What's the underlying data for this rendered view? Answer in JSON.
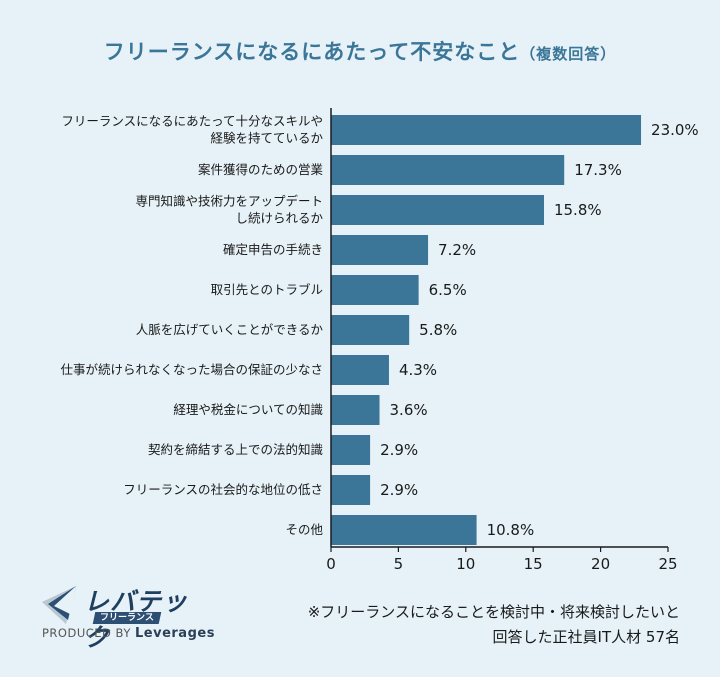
{
  "header": {
    "title": "フリーランスになるにあたって不安なこと",
    "subtitle": "（複数回答）"
  },
  "chart_data": {
    "type": "bar",
    "orientation": "horizontal",
    "title": "フリーランスになるにあたって不安なこと（複数回答）",
    "categories": [
      [
        "フリーランスになるにあたって十分なスキルや",
        "経験を持てているか"
      ],
      [
        "案件獲得のための営業"
      ],
      [
        "専門知識や技術力をアップデート",
        "し続けられるか"
      ],
      [
        "確定申告の手続き"
      ],
      [
        "取引先とのトラブル"
      ],
      [
        "人脈を広げていくことができるか"
      ],
      [
        "仕事が続けられなくなった場合の保証の少なさ"
      ],
      [
        "経理や税金についての知識"
      ],
      [
        "契約を締結する上での法的知識"
      ],
      [
        "フリーランスの社会的な地位の低さ"
      ],
      [
        "その他"
      ]
    ],
    "values": [
      23.0,
      17.3,
      15.8,
      7.2,
      6.5,
      5.8,
      4.3,
      3.6,
      2.9,
      2.9,
      10.8
    ],
    "value_labels": [
      "23.0%",
      "17.3%",
      "15.8%",
      "7.2%",
      "6.5%",
      "5.8%",
      "4.3%",
      "3.6%",
      "2.9%",
      "2.9%",
      "10.8%"
    ],
    "xlim": [
      0,
      25
    ],
    "xticks": [
      "0",
      "5",
      "10",
      "15",
      "20",
      "25"
    ],
    "bar_color": "#3b7597",
    "grid": false
  },
  "logo": {
    "name": "レバテック",
    "sub": "フリーランス",
    "produced_prefix": "PRODUCED BY",
    "produced_brand": "Leverages"
  },
  "note": {
    "line1": "※フリーランスになることを検討中・将来検討したいと",
    "line2": "回答した正社員IT人材 57名"
  }
}
